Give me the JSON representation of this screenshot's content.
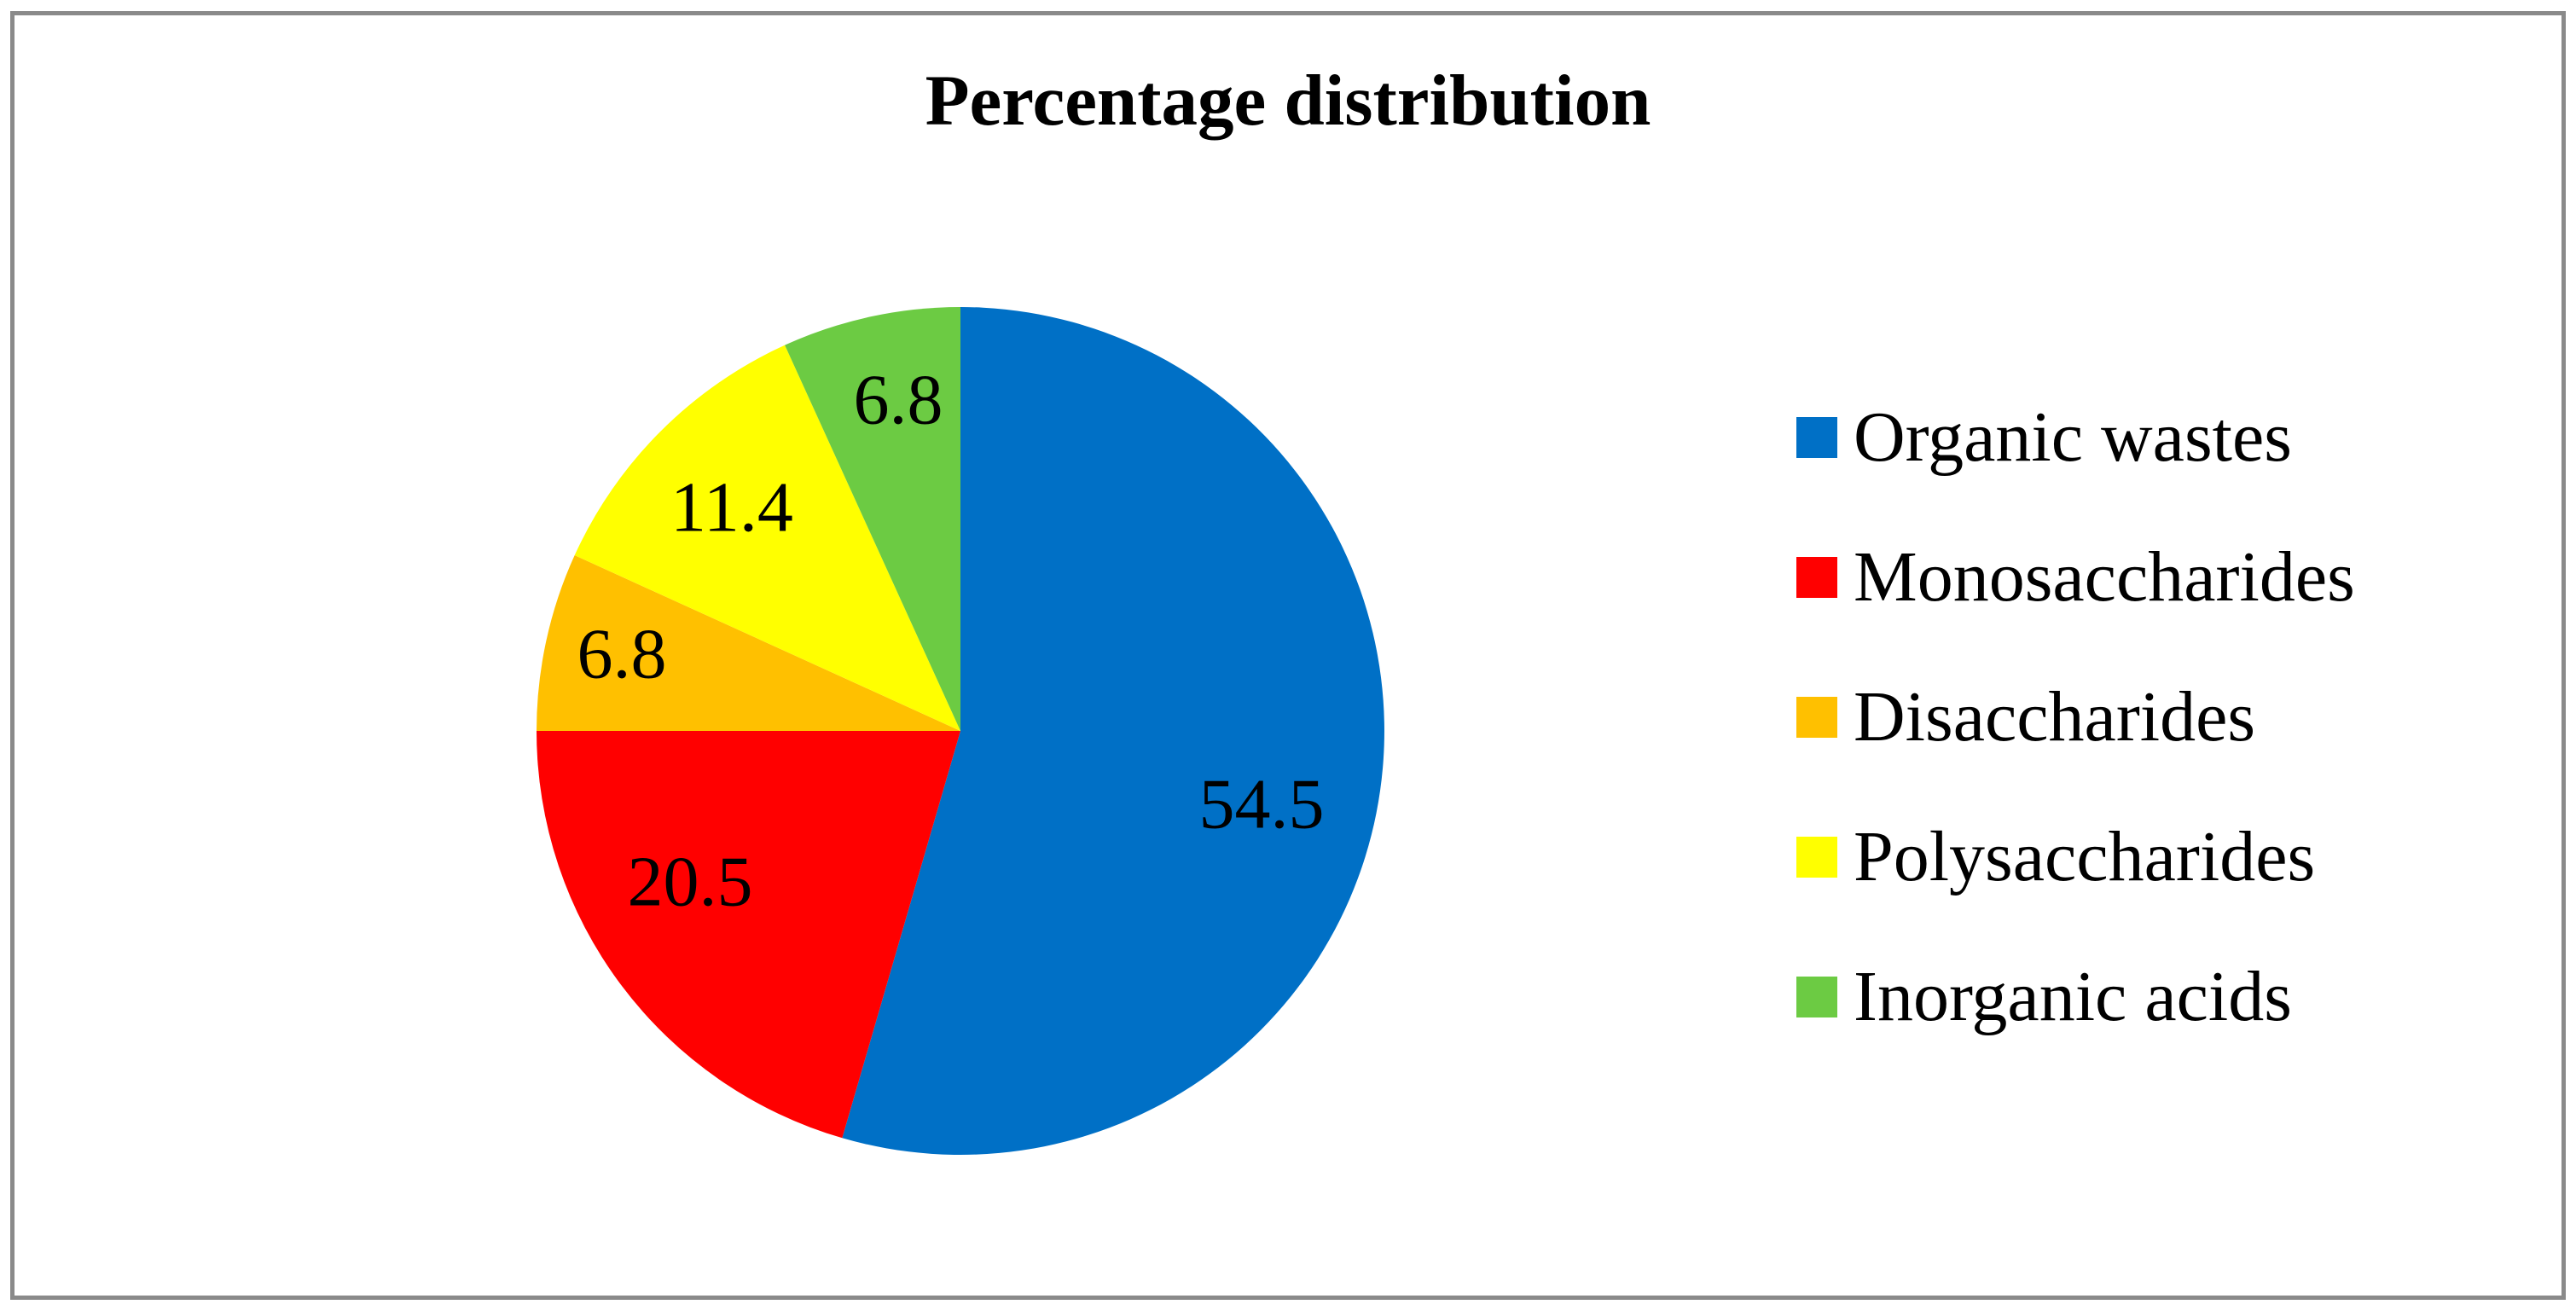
{
  "chart_data": {
    "type": "pie",
    "title": "Percentage distribution",
    "categories": [
      "Organic wastes",
      "Monosaccharides",
      "Disaccharides",
      "Polysaccharides",
      "Inorganic acids"
    ],
    "values": [
      54.5,
      20.5,
      6.8,
      11.4,
      6.8
    ],
    "labels": [
      "54.5",
      "20.5",
      "6.8",
      "11.4",
      "6.8"
    ],
    "colors": [
      "#0070C6",
      "#FF0000",
      "#FFC000",
      "#FFFF00",
      "#6CCB43"
    ],
    "total": 100.0,
    "start_angle_deg": 0,
    "direction": "clockwise",
    "legend_position": "right",
    "label_positions": [
      [
        1479,
        941
      ],
      [
        809,
        1032
      ],
      [
        729,
        765
      ],
      [
        858,
        593
      ],
      [
        1053,
        467
      ]
    ],
    "pie_center": [
      1126,
      857
    ],
    "pie_radius": 497,
    "background": "#FFFFFF",
    "border_color": "#8A8A8A",
    "text_color": "#000000"
  }
}
